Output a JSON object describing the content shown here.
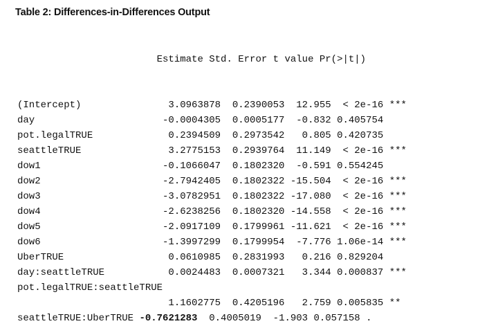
{
  "caption": "Table 2: Differences-in-Differences Output",
  "header": "                        Estimate Std. Error t value Pr(>|t|)",
  "rows": [
    {
      "prefix": "(Intercept)               3.0963878  0.2390053  12.955  < 2e-16 ***",
      "bold": "",
      "suffix": ""
    },
    {
      "prefix": "day                      -0.0004305  0.0005177  -0.832 0.405754",
      "bold": "",
      "suffix": ""
    },
    {
      "prefix": "pot.legalTRUE             0.2394509  0.2973542   0.805 0.420735",
      "bold": "",
      "suffix": ""
    },
    {
      "prefix": "seattleTRUE               3.2775153  0.2939764  11.149  < 2e-16 ***",
      "bold": "",
      "suffix": ""
    },
    {
      "prefix": "dow1                     -0.1066047  0.1802320  -0.591 0.554245",
      "bold": "",
      "suffix": ""
    },
    {
      "prefix": "dow2                     -2.7942405  0.1802322 -15.504  < 2e-16 ***",
      "bold": "",
      "suffix": ""
    },
    {
      "prefix": "dow3                     -3.0782951  0.1802322 -17.080  < 2e-16 ***",
      "bold": "",
      "suffix": ""
    },
    {
      "prefix": "dow4                     -2.6238256  0.1802320 -14.558  < 2e-16 ***",
      "bold": "",
      "suffix": ""
    },
    {
      "prefix": "dow5                     -2.0917109  0.1799961 -11.621  < 2e-16 ***",
      "bold": "",
      "suffix": ""
    },
    {
      "prefix": "dow6                     -1.3997299  0.1799954  -7.776 1.06e-14 ***",
      "bold": "",
      "suffix": ""
    },
    {
      "prefix": "UberTRUE                  0.0610985  0.2831993   0.216 0.829204",
      "bold": "",
      "suffix": ""
    },
    {
      "prefix": "day:seattleTRUE           0.0024483  0.0007321   3.344 0.000837 ***",
      "bold": "",
      "suffix": ""
    },
    {
      "prefix": "pot.legalTRUE:seattleTRUE",
      "bold": "",
      "suffix": ""
    },
    {
      "prefix": "                          1.1602775  0.4205196   2.759 0.005835 **",
      "bold": "",
      "suffix": ""
    },
    {
      "prefix": "seattleTRUE:UberTRUE ",
      "bold": "-0.7621283",
      "suffix": "  0.4005019  -1.903 0.057158 ."
    }
  ]
}
